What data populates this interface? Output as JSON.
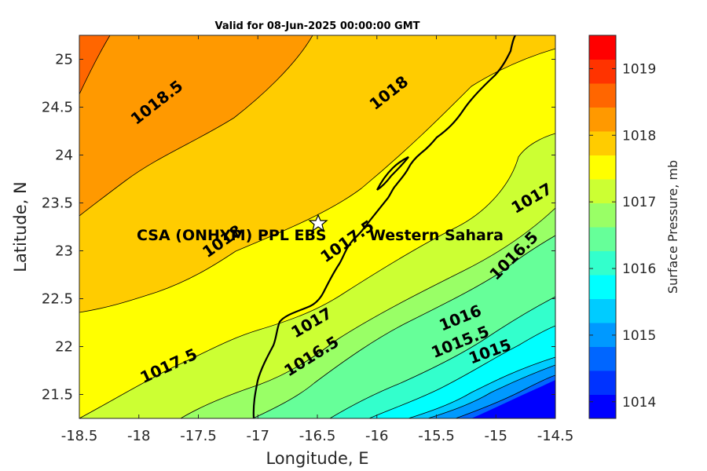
{
  "chart_data": {
    "type": "contour",
    "title": "Valid for 08-Jun-2025 00:00:00 GMT",
    "xlabel": "Longitude, E",
    "ylabel": "Latitude, N",
    "xlim": [
      -18.5,
      -14.5
    ],
    "ylim": [
      21.25,
      25.25
    ],
    "xticks": [
      "-18.5",
      "-18",
      "-17.5",
      "-17",
      "-16.5",
      "-16",
      "-15.5",
      "-15",
      "-14.5"
    ],
    "yticks": [
      "21.5",
      "22",
      "22.5",
      "23",
      "23.5",
      "24",
      "24.5",
      "25"
    ],
    "colorbar": {
      "label": "Surface Pressure, mb",
      "min": 1013.75,
      "max": 1019.5,
      "step": 0.25,
      "ticks": [
        "1014",
        "1015",
        "1016",
        "1017",
        "1018",
        "1019"
      ],
      "colors": [
        "#0000ff",
        "#0033ff",
        "#0066ff",
        "#0099ff",
        "#00ccff",
        "#00ffff",
        "#33ffcc",
        "#66ff99",
        "#99ff66",
        "#ccff33",
        "#ffff00",
        "#ffcc00",
        "#ff9900",
        "#ff6600",
        "#ff3300",
        "#ff0000"
      ]
    },
    "contour_levels": [
      {
        "value": 1018.5,
        "label": "1018.5"
      },
      {
        "value": 1018,
        "label": "1018"
      },
      {
        "value": 1017.5,
        "label": "1017.5"
      },
      {
        "value": 1017,
        "label": "1017"
      },
      {
        "value": 1016.5,
        "label": "1016.5"
      },
      {
        "value": 1016,
        "label": "1016"
      },
      {
        "value": 1015.5,
        "label": "1015.5"
      },
      {
        "value": 1015,
        "label": "1015"
      }
    ],
    "contour_labels": [
      {
        "text": "1018.5",
        "lon": -17.85,
        "lat": 24.55,
        "angle": -38
      },
      {
        "text": "1018",
        "lon": -15.9,
        "lat": 24.65,
        "angle": -38
      },
      {
        "text": "1018",
        "lon": -17.3,
        "lat": 23.1,
        "angle": -35
      },
      {
        "text": "1017.5",
        "lon": -16.25,
        "lat": 23.1,
        "angle": -35
      },
      {
        "text": "1017.5",
        "lon": -17.75,
        "lat": 21.8,
        "angle": -25
      },
      {
        "text": "1017",
        "lon": -16.55,
        "lat": 22.25,
        "angle": -30
      },
      {
        "text": "1017",
        "lon": -14.7,
        "lat": 23.55,
        "angle": -30
      },
      {
        "text": "1016.5",
        "lon": -16.55,
        "lat": 21.9,
        "angle": -32
      },
      {
        "text": "1016.5",
        "lon": -14.85,
        "lat": 22.95,
        "angle": -45
      },
      {
        "text": "1016",
        "lon": -15.3,
        "lat": 22.3,
        "angle": -22
      },
      {
        "text": "1015.5",
        "lon": -15.3,
        "lat": 22.05,
        "angle": -22
      },
      {
        "text": "1015",
        "lon": -15.05,
        "lat": 21.95,
        "angle": -20
      }
    ],
    "markers": [
      {
        "name": "CSA (ONHYM) PPL EBS",
        "lon": -16.5,
        "lat": 23.28,
        "symbol": "star"
      }
    ],
    "annotations": [
      {
        "text": "CSA (ONHYM) PPL EBS",
        "lon": -18.0,
        "lat": 23.17
      },
      {
        "text": "Western Sahara",
        "lon": -16.05,
        "lat": 23.17
      }
    ]
  }
}
